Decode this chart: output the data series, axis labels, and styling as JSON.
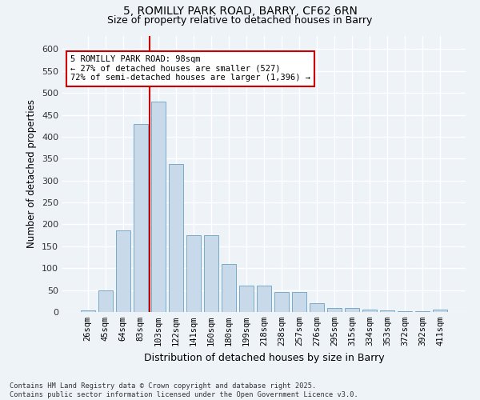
{
  "title1": "5, ROMILLY PARK ROAD, BARRY, CF62 6RN",
  "title2": "Size of property relative to detached houses in Barry",
  "xlabel": "Distribution of detached houses by size in Barry",
  "ylabel": "Number of detached properties",
  "categories": [
    "26sqm",
    "45sqm",
    "64sqm",
    "83sqm",
    "103sqm",
    "122sqm",
    "141sqm",
    "160sqm",
    "180sqm",
    "199sqm",
    "218sqm",
    "238sqm",
    "257sqm",
    "276sqm",
    "295sqm",
    "315sqm",
    "334sqm",
    "353sqm",
    "372sqm",
    "392sqm",
    "411sqm"
  ],
  "values": [
    3,
    50,
    187,
    430,
    480,
    337,
    175,
    175,
    110,
    60,
    60,
    45,
    45,
    20,
    10,
    10,
    5,
    3,
    2,
    2,
    5
  ],
  "bar_color": "#c8d9ea",
  "bar_edge_color": "#7aaac8",
  "vline_color": "#cc0000",
  "annotation_text": "5 ROMILLY PARK ROAD: 98sqm\n← 27% of detached houses are smaller (527)\n72% of semi-detached houses are larger (1,396) →",
  "annotation_box_color": "#ffffff",
  "annotation_box_edge": "#cc0000",
  "ylim": [
    0,
    630
  ],
  "yticks": [
    0,
    50,
    100,
    150,
    200,
    250,
    300,
    350,
    400,
    450,
    500,
    550,
    600
  ],
  "footer": "Contains HM Land Registry data © Crown copyright and database right 2025.\nContains public sector information licensed under the Open Government Licence v3.0.",
  "bg_color": "#eef3f8",
  "plot_bg_color": "#eef3f8",
  "grid_color": "#ffffff"
}
